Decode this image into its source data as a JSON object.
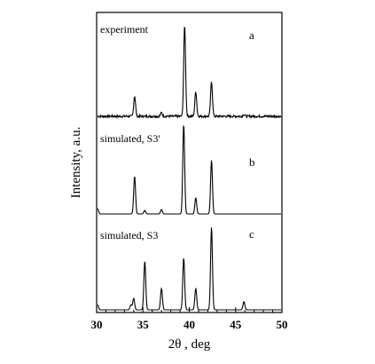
{
  "chart_data": {
    "type": "line",
    "xlabel": "2θ , deg",
    "ylabel": "Intensity, a.u.",
    "xlim": [
      30,
      50
    ],
    "x_ticks": [
      30,
      35,
      40,
      45,
      50
    ],
    "grid": false,
    "series": [
      {
        "name": "experiment",
        "panel_label": "a",
        "baseline_noise": true,
        "peaks": [
          {
            "x": 34.1,
            "y": 0.22
          },
          {
            "x": 37.0,
            "y": 0.04
          },
          {
            "x": 39.5,
            "y": 1.0
          },
          {
            "x": 40.7,
            "y": 0.27
          },
          {
            "x": 42.4,
            "y": 0.38
          },
          {
            "x": 45.9,
            "y": 0.02
          }
        ]
      },
      {
        "name": "simulated, S3'",
        "panel_label": "b",
        "baseline_noise": false,
        "peaks": [
          {
            "x": 30.1,
            "y": 0.06
          },
          {
            "x": 34.1,
            "y": 0.42
          },
          {
            "x": 35.2,
            "y": 0.04
          },
          {
            "x": 37.0,
            "y": 0.05
          },
          {
            "x": 39.4,
            "y": 1.0
          },
          {
            "x": 40.7,
            "y": 0.18
          },
          {
            "x": 42.4,
            "y": 0.6
          }
        ]
      },
      {
        "name": "simulated, S3",
        "panel_label": "c",
        "baseline_noise": false,
        "peaks": [
          {
            "x": 30.1,
            "y": 0.06
          },
          {
            "x": 33.7,
            "y": 0.06
          },
          {
            "x": 34.0,
            "y": 0.14
          },
          {
            "x": 35.2,
            "y": 0.59
          },
          {
            "x": 37.0,
            "y": 0.26
          },
          {
            "x": 39.4,
            "y": 0.63
          },
          {
            "x": 40.7,
            "y": 0.26
          },
          {
            "x": 42.4,
            "y": 1.0
          },
          {
            "x": 45.9,
            "y": 0.1
          }
        ]
      }
    ]
  }
}
